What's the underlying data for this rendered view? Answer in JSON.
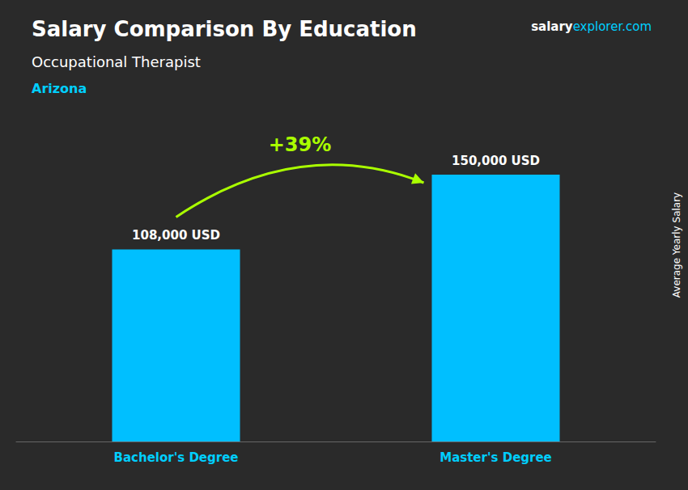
{
  "chart_data": {
    "type": "bar",
    "title": "Salary Comparison By Education",
    "subtitle": [
      "Occupational Therapist",
      "Arizona"
    ],
    "annotations": [
      "+39%",
      "salary",
      "explorer.com"
    ],
    "ylabel": "Average Yearly Salary",
    "categories": [
      "Bachelor's Degree",
      "Master's Degree"
    ],
    "values": [
      108000,
      150000
    ],
    "value_labels": [
      "108,000 USD",
      "150,000 USD"
    ],
    "data_labels": true,
    "color": "#00BFFF",
    "ylim": [
      0,
      180000
    ],
    "tick_labels": "x",
    "grid": false
  }
}
